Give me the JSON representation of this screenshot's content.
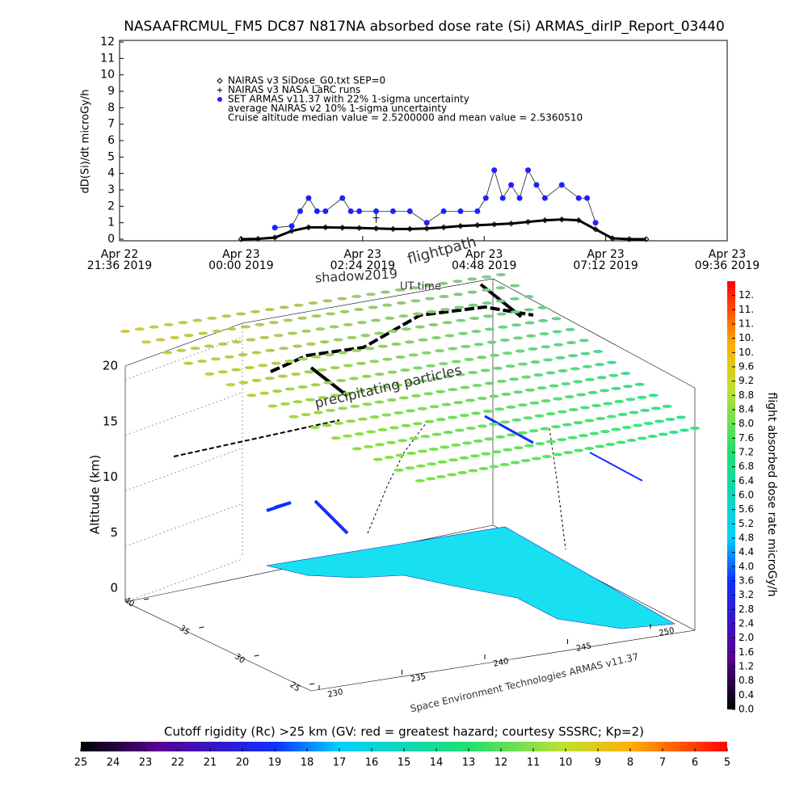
{
  "chart_data": [
    {
      "type": "time-series",
      "title": "NASAAFRCMUL_FM5 DC87 N817NA absorbed dose rate (Si) ARMAS_dirIP_Report_03440",
      "ylabel": "dD(Si)/dt microGy/h",
      "ylim": [
        0,
        12
      ],
      "yticks": [
        0,
        1,
        2,
        3,
        4,
        5,
        6,
        7,
        8,
        9,
        10,
        11,
        12
      ],
      "xlim": [
        "2019-04-22T21:36",
        "2019-04-23T09:36"
      ],
      "xticks": [
        {
          "value": "2019-04-22T21:36",
          "label": "Apr 22\n21:36 2019"
        },
        {
          "value": "2019-04-23T00:00",
          "label": "Apr 23\n00:00 2019"
        },
        {
          "value": "2019-04-23T02:24",
          "label": "Apr 23\n02:24 2019"
        },
        {
          "value": "2019-04-23T04:48",
          "label": "Apr 23\n04:48 2019"
        },
        {
          "value": "2019-04-23T07:12",
          "label": "Apr 23\n07:12 2019"
        },
        {
          "value": "2019-04-23T09:36",
          "label": "Apr 23\n09:36 2019"
        }
      ],
      "series": [
        {
          "name": "NAIRAS v3 SiDose_G0.txt SEP=0",
          "color": "#000000",
          "marker": "diamond",
          "x": [
            "2019-04-23T00:00",
            "2019-04-23T00:20",
            "2019-04-23T00:40",
            "2019-04-23T01:00",
            "2019-04-23T01:20",
            "2019-04-23T01:40",
            "2019-04-23T02:00",
            "2019-04-23T02:20",
            "2019-04-23T02:40",
            "2019-04-23T03:00",
            "2019-04-23T03:20",
            "2019-04-23T03:40",
            "2019-04-23T04:00",
            "2019-04-23T04:20",
            "2019-04-23T04:40",
            "2019-04-23T05:00",
            "2019-04-23T05:20",
            "2019-04-23T05:40",
            "2019-04-23T06:00",
            "2019-04-23T06:20",
            "2019-04-23T06:40",
            "2019-04-23T07:00",
            "2019-04-23T07:20",
            "2019-04-23T07:40",
            "2019-04-23T08:00"
          ],
          "values": [
            0,
            0.02,
            0.1,
            0.5,
            0.72,
            0.72,
            0.7,
            0.68,
            0.65,
            0.62,
            0.62,
            0.65,
            0.72,
            0.8,
            0.85,
            0.9,
            0.95,
            1.05,
            1.15,
            1.2,
            1.15,
            0.6,
            0.05,
            0,
            0
          ]
        },
        {
          "name": "NAIRAS v3 NASA LaRC runs",
          "color": "#000000",
          "marker": "plus",
          "x": [
            "2019-04-23T02:40"
          ],
          "values": [
            1.3
          ]
        },
        {
          "name": "SET ARMAS v11.37 with 22% 1-sigma uncertainty",
          "color": "#2020ff",
          "marker": "circle",
          "x": [
            "2019-04-23T00:40",
            "2019-04-23T01:00",
            "2019-04-23T01:10",
            "2019-04-23T01:20",
            "2019-04-23T01:30",
            "2019-04-23T01:40",
            "2019-04-23T02:00",
            "2019-04-23T02:10",
            "2019-04-23T02:20",
            "2019-04-23T02:40",
            "2019-04-23T03:00",
            "2019-04-23T03:20",
            "2019-04-23T03:40",
            "2019-04-23T04:00",
            "2019-04-23T04:20",
            "2019-04-23T04:40",
            "2019-04-23T04:50",
            "2019-04-23T05:00",
            "2019-04-23T05:10",
            "2019-04-23T05:20",
            "2019-04-23T05:30",
            "2019-04-23T05:40",
            "2019-04-23T05:50",
            "2019-04-23T06:00",
            "2019-04-23T06:20",
            "2019-04-23T06:40",
            "2019-04-23T06:50",
            "2019-04-23T07:00"
          ],
          "values": [
            0.7,
            0.8,
            1.7,
            2.5,
            1.7,
            1.7,
            2.5,
            1.7,
            1.7,
            1.7,
            1.7,
            1.7,
            1.0,
            1.7,
            1.7,
            1.7,
            2.5,
            4.2,
            2.5,
            3.3,
            2.5,
            4.2,
            3.3,
            2.5,
            3.3,
            2.5,
            2.5,
            1.0
          ]
        }
      ],
      "notes": [
        "average NAIRAS v2 10% 1-sigma uncertainty",
        "Cruise altitude median value =  2.5200000 and mean value =  2.5360510"
      ]
    },
    {
      "type": "scene3d",
      "zlabel": "Altitude (km)",
      "zlim": [
        0,
        20
      ],
      "zticks": [
        0,
        5,
        10,
        15,
        20
      ],
      "latlim": [
        25,
        40
      ],
      "latticks": [
        25,
        30,
        35,
        40
      ],
      "lonlim": [
        230,
        250
      ],
      "lonticks": [
        230,
        235,
        240,
        245,
        250
      ],
      "annotations": [
        "shadow2019",
        "flightpath",
        "UT time",
        "precipitating particles",
        "Space Environment Technologies ARMAS v11.37"
      ]
    },
    {
      "type": "colorbar",
      "orientation": "vertical",
      "label": "flight absorbed dose rate microGy/h",
      "ylim": [
        0,
        12
      ],
      "yticks": [
        {
          "value": 0,
          "label": "0.0"
        },
        {
          "value": 0.4,
          "label": "0.4"
        },
        {
          "value": 0.8,
          "label": "0.8"
        },
        {
          "value": 1.2,
          "label": "1.2"
        },
        {
          "value": 1.6,
          "label": "1.6"
        },
        {
          "value": 2,
          "label": "2.0"
        },
        {
          "value": 2.4,
          "label": "2.4"
        },
        {
          "value": 2.8,
          "label": "2.8"
        },
        {
          "value": 3.2,
          "label": "3.2"
        },
        {
          "value": 3.6,
          "label": "3.6"
        },
        {
          "value": 4,
          "label": "4.0"
        },
        {
          "value": 4.4,
          "label": "4.4"
        },
        {
          "value": 4.8,
          "label": "4.8"
        },
        {
          "value": 5.2,
          "label": "5.2"
        },
        {
          "value": 5.6,
          "label": "5.6"
        },
        {
          "value": 6,
          "label": "6.0"
        },
        {
          "value": 6.4,
          "label": "6.4"
        },
        {
          "value": 6.8,
          "label": "6.8"
        },
        {
          "value": 7.2,
          "label": "7.2"
        },
        {
          "value": 7.6,
          "label": "7.6"
        },
        {
          "value": 8,
          "label": "8.0"
        },
        {
          "value": 8.4,
          "label": "8.4"
        },
        {
          "value": 8.8,
          "label": "8.8"
        },
        {
          "value": 9.2,
          "label": "9.2"
        },
        {
          "value": 9.6,
          "label": "9.6"
        },
        {
          "value": 10,
          "label": "10."
        },
        {
          "value": 10.4,
          "label": "10."
        },
        {
          "value": 10.8,
          "label": "11."
        },
        {
          "value": 11.2,
          "label": "11."
        },
        {
          "value": 11.6,
          "label": "12."
        }
      ]
    },
    {
      "type": "colorbar",
      "orientation": "horizontal",
      "label": "Cutoff rigidity (Rc) >25 km (GV: red = greatest hazard; courtesy SSSRC; Kp=2)",
      "xlim": [
        25,
        5
      ],
      "xticks": [
        25,
        24,
        23,
        22,
        21,
        20,
        19,
        18,
        17,
        16,
        15,
        14,
        13,
        12,
        11,
        10,
        9,
        8,
        7,
        6,
        5
      ]
    }
  ]
}
